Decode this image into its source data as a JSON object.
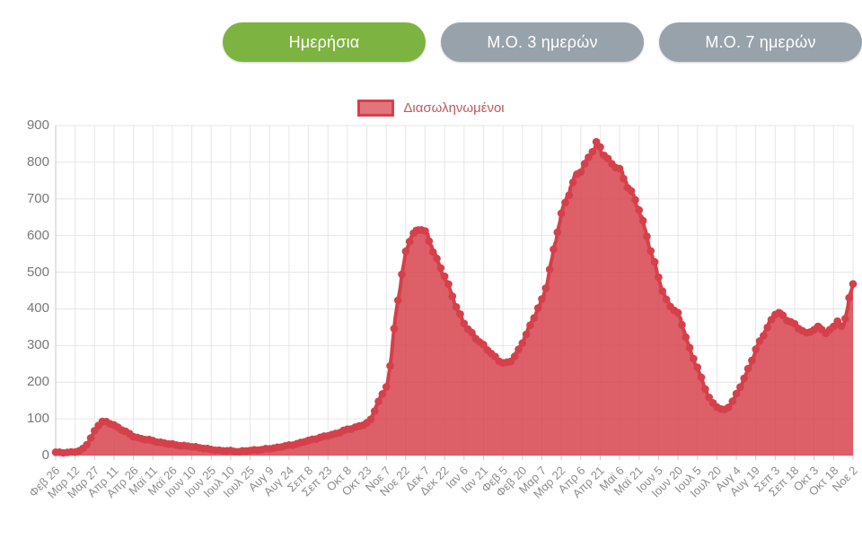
{
  "toolbar": {
    "buttons": [
      {
        "id": "daily",
        "label": "Ημερήσια",
        "active": true
      },
      {
        "id": "avg3",
        "label": "Μ.Ο. 3 ημερών",
        "active": false
      },
      {
        "id": "avg7",
        "label": "Μ.Ο. 7 ημερών",
        "active": false
      }
    ]
  },
  "colors": {
    "active_button": "#7db341",
    "inactive_button": "#98a2ab",
    "series_line": "#d6404a",
    "series_fill": "rgba(214,64,74,0.84)",
    "grid": "#e6e6e6",
    "axis": "#c9c9c9"
  },
  "chart_data": {
    "type": "area",
    "legend": [
      {
        "label": "Διασωληνωμένοι",
        "color": "#d6404a"
      }
    ],
    "ylabel": "",
    "xlabel": "",
    "ylim": [
      0,
      900
    ],
    "y_ticks": [
      0,
      100,
      200,
      300,
      400,
      500,
      600,
      700,
      800,
      900
    ],
    "grid": true,
    "legend_position": "top-center",
    "x_tick_labels": [
      "Φεβ 26",
      "Μαρ 12",
      "Μαρ 27",
      "Απρ 11",
      "Απρ 26",
      "Μαϊ 11",
      "Μαϊ 26",
      "Ιουν 10",
      "Ιουν 25",
      "Ιουλ 10",
      "Ιουλ 25",
      "Αυγ 9",
      "Αυγ 24",
      "Σεπ 8",
      "Σεπ 23",
      "Οκτ 8",
      "Οκτ 23",
      "Νοε 7",
      "Νοε 22",
      "Δεκ 7",
      "Δεκ 22",
      "Ιαν 6",
      "Ιαν 21",
      "Φεβ 5",
      "Φεβ 20",
      "Μαρ 7",
      "Μαρ 22",
      "Απρ 6",
      "Απρ 21",
      "Μαϊ 6",
      "Μαϊ 21",
      "Ιουν 5",
      "Ιουν 20",
      "Ιουλ 5",
      "Ιουλ 20",
      "Αυγ 4",
      "Αυγ 19",
      "Σεπ 3",
      "Σεπ 18",
      "Οκτ 3",
      "Οκτ 18",
      "Νοε 2"
    ],
    "days_per_tick": 15,
    "total_days": 615,
    "series": [
      {
        "name": "Διασωληνωμένοι",
        "anchors": [
          [
            0,
            8
          ],
          [
            6,
            8
          ],
          [
            12,
            9
          ],
          [
            16,
            11
          ],
          [
            20,
            16
          ],
          [
            23,
            26
          ],
          [
            26,
            40
          ],
          [
            29,
            60
          ],
          [
            32,
            78
          ],
          [
            34,
            88
          ],
          [
            36,
            93
          ],
          [
            39,
            91
          ],
          [
            43,
            85
          ],
          [
            47,
            79
          ],
          [
            51,
            72
          ],
          [
            56,
            62
          ],
          [
            60,
            52
          ],
          [
            65,
            47
          ],
          [
            70,
            43
          ],
          [
            75,
            39
          ],
          [
            80,
            36
          ],
          [
            85,
            33
          ],
          [
            90,
            31
          ],
          [
            97,
            28
          ],
          [
            105,
            24
          ],
          [
            111,
            21
          ],
          [
            117,
            17
          ],
          [
            123,
            15
          ],
          [
            129,
            14
          ],
          [
            135,
            13
          ],
          [
            141,
            11
          ],
          [
            147,
            12
          ],
          [
            153,
            14
          ],
          [
            159,
            16
          ],
          [
            165,
            19
          ],
          [
            171,
            23
          ],
          [
            177,
            26
          ],
          [
            183,
            29
          ],
          [
            189,
            34
          ],
          [
            195,
            40
          ],
          [
            202,
            48
          ],
          [
            210,
            55
          ],
          [
            217,
            61
          ],
          [
            225,
            70
          ],
          [
            231,
            76
          ],
          [
            237,
            83
          ],
          [
            240,
            88
          ],
          [
            243,
            97
          ],
          [
            246,
            125
          ],
          [
            249,
            148
          ],
          [
            252,
            168
          ],
          [
            255,
            185
          ],
          [
            257,
            215
          ],
          [
            259,
            265
          ],
          [
            262,
            390
          ],
          [
            265,
            440
          ],
          [
            268,
            510
          ],
          [
            270,
            560
          ],
          [
            273,
            588
          ],
          [
            276,
            605
          ],
          [
            279,
            618
          ],
          [
            281,
            622
          ],
          [
            284,
            616
          ],
          [
            287,
            600
          ],
          [
            290,
            570
          ],
          [
            295,
            525
          ],
          [
            300,
            488
          ],
          [
            305,
            445
          ],
          [
            310,
            395
          ],
          [
            315,
            360
          ],
          [
            320,
            340
          ],
          [
            325,
            318
          ],
          [
            330,
            300
          ],
          [
            335,
            283
          ],
          [
            340,
            262
          ],
          [
            344,
            250
          ],
          [
            348,
            251
          ],
          [
            352,
            262
          ],
          [
            356,
            280
          ],
          [
            360,
            310
          ],
          [
            364,
            340
          ],
          [
            368,
            372
          ],
          [
            372,
            400
          ],
          [
            375,
            420
          ],
          [
            379,
            470
          ],
          [
            383,
            540
          ],
          [
            387,
            610
          ],
          [
            390,
            660
          ],
          [
            394,
            700
          ],
          [
            398,
            740
          ],
          [
            402,
            768
          ],
          [
            405,
            778
          ],
          [
            409,
            800
          ],
          [
            413,
            825
          ],
          [
            416,
            843
          ],
          [
            418,
            850
          ],
          [
            420,
            840
          ],
          [
            421,
            812
          ],
          [
            423,
            828
          ],
          [
            426,
            805
          ],
          [
            430,
            792
          ],
          [
            434,
            788
          ],
          [
            438,
            760
          ],
          [
            444,
            720
          ],
          [
            450,
            672
          ],
          [
            455,
            610
          ],
          [
            460,
            545
          ],
          [
            465,
            485
          ],
          [
            470,
            430
          ],
          [
            475,
            405
          ],
          [
            480,
            390
          ],
          [
            484,
            350
          ],
          [
            488,
            300
          ],
          [
            492,
            262
          ],
          [
            495,
            240
          ],
          [
            499,
            200
          ],
          [
            503,
            165
          ],
          [
            507,
            140
          ],
          [
            511,
            132
          ],
          [
            514,
            127
          ],
          [
            517,
            125
          ],
          [
            520,
            138
          ],
          [
            523,
            152
          ],
          [
            525,
            166
          ],
          [
            529,
            195
          ],
          [
            533,
            225
          ],
          [
            537,
            258
          ],
          [
            540,
            289
          ],
          [
            544,
            318
          ],
          [
            548,
            345
          ],
          [
            551,
            362
          ],
          [
            555,
            391
          ],
          [
            557,
            393
          ],
          [
            560,
            386
          ],
          [
            564,
            370
          ],
          [
            567,
            360
          ],
          [
            570,
            355
          ],
          [
            573,
            348
          ],
          [
            576,
            338
          ],
          [
            579,
            331
          ],
          [
            582,
            340
          ],
          [
            585,
            340
          ],
          [
            588,
            355
          ],
          [
            590,
            358
          ],
          [
            593,
            335
          ],
          [
            595,
            329
          ],
          [
            598,
            350
          ],
          [
            600,
            352
          ],
          [
            603,
            369
          ],
          [
            605,
            355
          ],
          [
            607,
            345
          ],
          [
            609,
            372
          ],
          [
            611,
            408
          ],
          [
            613,
            440
          ],
          [
            615,
            475
          ]
        ]
      }
    ]
  }
}
